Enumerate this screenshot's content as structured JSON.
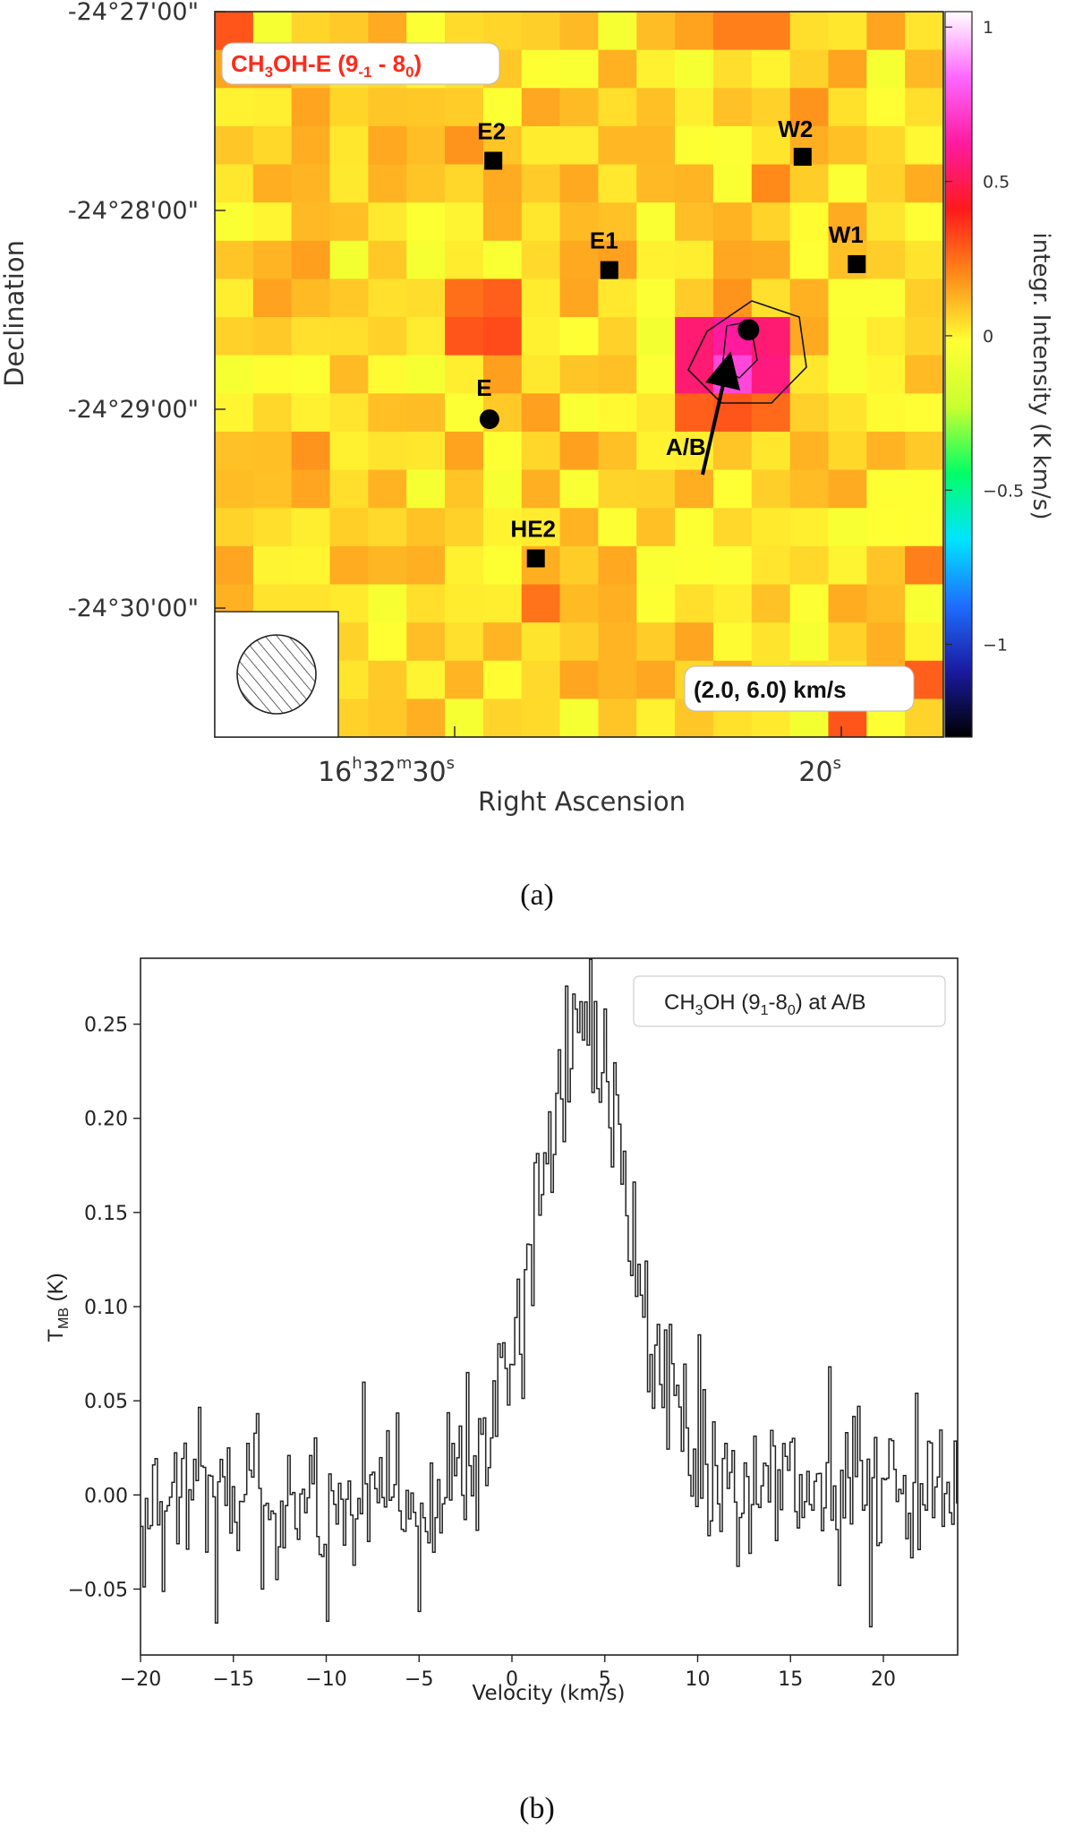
{
  "panel_a": {
    "map_title_main": "CH",
    "map_title_sub3": "3",
    "map_title_mid": "OH-E (9",
    "map_title_sub1": "-1",
    "map_title_dash": " - 8",
    "map_title_sub0": "0",
    "map_title_end": ")",
    "velocity_range": "(2.0, 6.0) km/s",
    "caption": "(a)",
    "colorbar_label": "integr. Intensity (K km/s)"
  },
  "panel_b": {
    "legend_main": "CH",
    "legend_sub3": "3",
    "legend_mid": "OH (9",
    "legend_sub1": "1",
    "legend_dash": "-8",
    "legend_sub0": "0",
    "legend_end": ") at A/B",
    "ylabel_main": "T",
    "ylabel_sub": "MB",
    "ylabel_end": " (K)",
    "caption": "(b)"
  },
  "colors": {
    "title_red": "#ff2a1a",
    "line": "#222222"
  },
  "chart_data": [
    {
      "type": "heatmap",
      "xlabel": "Right Ascension",
      "ylabel": "Declination",
      "x_ticks": [
        {
          "hms_h": "16",
          "hms_m": "32",
          "hms_s": "30",
          "ra_s": 30
        },
        {
          "hms_s": "20",
          "ra_s": 20
        }
      ],
      "y_ticks": [
        "-24°27'00\"",
        "-24°28'00\"",
        "-24°29'00\"",
        "-24°30'00\""
      ],
      "y_tick_values": [
        -27,
        -28,
        -29,
        -30
      ],
      "colorbar": {
        "range": [
          -1.3,
          1.05
        ],
        "ticks": [
          1,
          0.5,
          0,
          -0.5,
          -1
        ],
        "tick_labels": [
          "1",
          "0.5",
          "0",
          "−0.5",
          "−1"
        ],
        "colors": [
          "#000000",
          "#1a1aa0",
          "#1e6eff",
          "#00e5ff",
          "#00ff66",
          "#c8ff2e",
          "#ffff33",
          "#ff8c1a",
          "#ff1a1a",
          "#ff1aa0",
          "#ff66ff",
          "#ffffff"
        ]
      },
      "sources": [
        {
          "name": "E2",
          "marker": "square",
          "ra_s": 29.0,
          "dec_min": -27.75
        },
        {
          "name": "W2",
          "marker": "square",
          "ra_s": 21.0,
          "dec_min": -27.73
        },
        {
          "name": "E1",
          "marker": "square",
          "ra_s": 26.0,
          "dec_min": -28.3
        },
        {
          "name": "W1",
          "marker": "square",
          "ra_s": 19.6,
          "dec_min": -28.27
        },
        {
          "name": "E",
          "marker": "circle",
          "ra_s": 29.1,
          "dec_min": -29.05
        },
        {
          "name": "A/B",
          "marker": "circle",
          "ra_s": 22.4,
          "dec_min": -28.6
        },
        {
          "name": "HE2",
          "marker": "square",
          "ra_s": 27.9,
          "dec_min": -29.75
        }
      ],
      "pixel_grid_rows": 19,
      "pixel_grid_cols": 19,
      "background_intensity": 0.05,
      "hot_pixels": [
        {
          "row": 8,
          "col": 12,
          "value": 0.55
        },
        {
          "row": 8,
          "col": 13,
          "value": 0.62
        },
        {
          "row": 8,
          "col": 14,
          "value": 0.55
        },
        {
          "row": 9,
          "col": 12,
          "value": 0.55
        },
        {
          "row": 9,
          "col": 13,
          "value": 0.75
        },
        {
          "row": 9,
          "col": 14,
          "value": 0.57
        },
        {
          "row": 10,
          "col": 12,
          "value": 0.28
        },
        {
          "row": 10,
          "col": 13,
          "value": 0.3
        },
        {
          "row": 10,
          "col": 14,
          "value": 0.26
        },
        {
          "row": 7,
          "col": 13,
          "value": 0.18
        },
        {
          "row": 7,
          "col": 6,
          "value": 0.25
        },
        {
          "row": 7,
          "col": 7,
          "value": 0.28
        },
        {
          "row": 8,
          "col": 6,
          "value": 0.3
        },
        {
          "row": 8,
          "col": 7,
          "value": 0.32
        },
        {
          "row": 9,
          "col": 7,
          "value": 0.16
        },
        {
          "row": 0,
          "col": 13,
          "value": 0.22
        },
        {
          "row": 0,
          "col": 14,
          "value": 0.22
        },
        {
          "row": 0,
          "col": 0,
          "value": 0.3
        },
        {
          "row": 15,
          "col": 8,
          "value": 0.24
        },
        {
          "row": 18,
          "col": 16,
          "value": 0.3
        },
        {
          "row": 17,
          "col": 18,
          "value": 0.28
        },
        {
          "row": 14,
          "col": 18,
          "value": 0.22
        },
        {
          "row": 4,
          "col": 14,
          "value": 0.2
        },
        {
          "row": 3,
          "col": 6,
          "value": 0.18
        },
        {
          "row": 11,
          "col": 2,
          "value": 0.18
        },
        {
          "row": 2,
          "col": 15,
          "value": 0.18
        }
      ],
      "contours": [
        0.4,
        0.65
      ]
    },
    {
      "type": "line",
      "style": "step",
      "xlabel": "Velocity (km/s)",
      "xlim": [
        -20,
        24
      ],
      "ylim": [
        -0.085,
        0.285
      ],
      "x_ticks": [
        -20,
        -15,
        -10,
        -5,
        0,
        5,
        10,
        15,
        20
      ],
      "y_ticks": [
        -0.05,
        0.0,
        0.05,
        0.1,
        0.15,
        0.2,
        0.25
      ],
      "y_tick_labels": [
        "−0.05",
        "0.00",
        "0.05",
        "0.10",
        "0.15",
        "0.20",
        "0.25"
      ],
      "x_tick_labels": [
        "−20",
        "−15",
        "−10",
        "−5",
        "0",
        "5",
        "10",
        "15",
        "20"
      ],
      "line_profile": {
        "peak_velocity": 3.9,
        "peak_value": 0.245,
        "fwhm": 6.0,
        "channel_width": 0.13,
        "noise_rms": 0.022
      },
      "notable_points": [
        {
          "x": 3.3,
          "y": 0.266
        },
        {
          "x": 4.4,
          "y": 0.262
        },
        {
          "x": 4.9,
          "y": 0.258
        },
        {
          "x": -16.0,
          "y": -0.068
        },
        {
          "x": -10.0,
          "y": -0.067
        },
        {
          "x": 19.3,
          "y": -0.07
        },
        {
          "x": 17.0,
          "y": 0.068
        },
        {
          "x": -2.5,
          "y": 0.065
        }
      ]
    }
  ]
}
